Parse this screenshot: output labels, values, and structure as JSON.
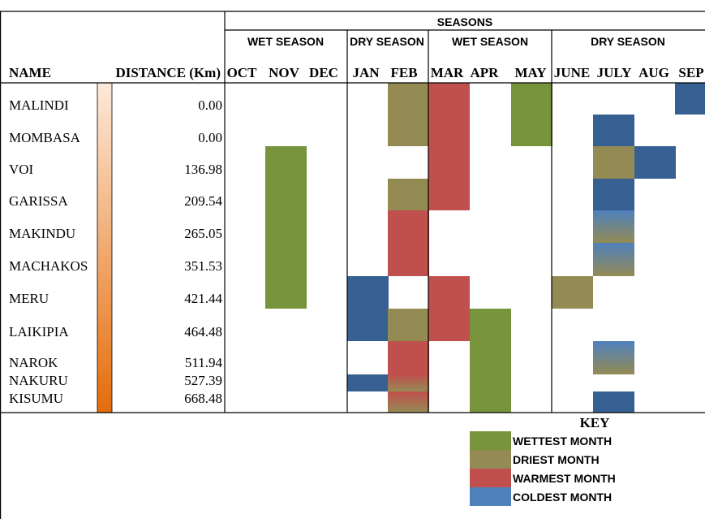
{
  "header": {
    "seasons": "SEASONS",
    "season_labels": [
      "WET SEASON",
      "DRY SEASON",
      "WET SEASON",
      "DRY SEASON"
    ],
    "name_col": "NAME",
    "distance_col": "DISTANCE (Km)"
  },
  "months": [
    "OCT",
    "NOV",
    "DEC",
    "JAN",
    "FEB",
    "MAR",
    "APR",
    "MAY",
    "JUNE",
    "JULY",
    "AUG",
    "SEP"
  ],
  "stations": [
    {
      "name": "MALINDI",
      "distance": "0.00"
    },
    {
      "name": "MOMBASA",
      "distance": "0.00"
    },
    {
      "name": "VOI",
      "distance": "136.98"
    },
    {
      "name": "GARISSA",
      "distance": "209.54"
    },
    {
      "name": "MAKINDU",
      "distance": "265.05"
    },
    {
      "name": "MACHAKOS",
      "distance": "351.53"
    },
    {
      "name": "MERU",
      "distance": "421.44"
    },
    {
      "name": "LAIKIPIA",
      "distance": "464.48"
    },
    {
      "name": "NAROK",
      "distance": "511.94"
    },
    {
      "name": "NAKURU",
      "distance": "527.39"
    },
    {
      "name": "KISUMU",
      "distance": "668.48"
    }
  ],
  "colors": {
    "wettest": "#77933c",
    "driest": "#948a54",
    "warmest": "#c0504d",
    "coldest": "#376092",
    "coldest_key": "#4f81bd",
    "gradient_light": "#fde9d9",
    "gradient_dark": "#e46c0a"
  },
  "key": {
    "title": "KEY",
    "items": [
      {
        "label": "WETTEST MONTH",
        "type": "wettest"
      },
      {
        "label": "DRIEST MONTH",
        "type": "driest"
      },
      {
        "label": "WARMEST MONTH",
        "type": "warmest"
      },
      {
        "label": "COLDEST MONTH",
        "type": "coldest_key"
      }
    ]
  },
  "cells": [
    {
      "station": "MALINDI",
      "month": "FEB",
      "type": "driest"
    },
    {
      "station": "MALINDI",
      "month": "MAR",
      "type": "warmest"
    },
    {
      "station": "MALINDI",
      "month": "MAY",
      "type": "wettest"
    },
    {
      "station": "MALINDI",
      "month": "SEP",
      "type": "coldest"
    },
    {
      "station": "MOMBASA",
      "month": "FEB",
      "type": "driest"
    },
    {
      "station": "MOMBASA",
      "month": "MAR",
      "type": "warmest"
    },
    {
      "station": "MOMBASA",
      "month": "MAY",
      "type": "wettest"
    },
    {
      "station": "MOMBASA",
      "month": "JULY",
      "type": "coldest"
    },
    {
      "station": "VOI",
      "month": "NOV",
      "type": "wettest"
    },
    {
      "station": "VOI",
      "month": "MAR",
      "type": "warmest"
    },
    {
      "station": "VOI",
      "month": "JULY",
      "type": "driest"
    },
    {
      "station": "VOI",
      "month": "AUG",
      "type": "coldest"
    },
    {
      "station": "GARISSA",
      "month": "NOV",
      "type": "wettest"
    },
    {
      "station": "GARISSA",
      "month": "FEB",
      "type": "driest"
    },
    {
      "station": "GARISSA",
      "month": "MAR",
      "type": "warmest"
    },
    {
      "station": "GARISSA",
      "month": "JULY",
      "type": "coldest"
    },
    {
      "station": "MAKINDU",
      "month": "NOV",
      "type": "wettest"
    },
    {
      "station": "MAKINDU",
      "month": "FEB",
      "type": "warmest"
    },
    {
      "station": "MAKINDU",
      "month": "JULY",
      "type": "coldest-driest"
    },
    {
      "station": "MACHAKOS",
      "month": "NOV",
      "type": "wettest"
    },
    {
      "station": "MACHAKOS",
      "month": "FEB",
      "type": "warmest"
    },
    {
      "station": "MACHAKOS",
      "month": "JULY",
      "type": "coldest-driest"
    },
    {
      "station": "MERU",
      "month": "NOV",
      "type": "wettest"
    },
    {
      "station": "MERU",
      "month": "JAN",
      "type": "coldest"
    },
    {
      "station": "MERU",
      "month": "MAR",
      "type": "warmest"
    },
    {
      "station": "MERU",
      "month": "JUNE",
      "type": "driest"
    },
    {
      "station": "LAIKIPIA",
      "month": "JAN",
      "type": "coldest"
    },
    {
      "station": "LAIKIPIA",
      "month": "FEB",
      "type": "driest"
    },
    {
      "station": "LAIKIPIA",
      "month": "MAR",
      "type": "warmest"
    },
    {
      "station": "LAIKIPIA",
      "month": "APR",
      "type": "wettest"
    },
    {
      "station": "NAROK",
      "month": "FEB",
      "type": "warmest"
    },
    {
      "station": "NAROK",
      "month": "APR",
      "type": "wettest"
    },
    {
      "station": "NAROK",
      "month": "JULY",
      "type": "coldest-driest"
    },
    {
      "station": "NAKURU",
      "month": "JAN",
      "type": "coldest"
    },
    {
      "station": "NAKURU",
      "month": "FEB",
      "type": "warmest-driest"
    },
    {
      "station": "NAKURU",
      "month": "APR",
      "type": "wettest"
    },
    {
      "station": "KISUMU",
      "month": "FEB",
      "type": "warmest-driest"
    },
    {
      "station": "KISUMU",
      "month": "APR",
      "type": "wettest"
    },
    {
      "station": "KISUMU",
      "month": "JULY",
      "type": "coldest"
    }
  ]
}
